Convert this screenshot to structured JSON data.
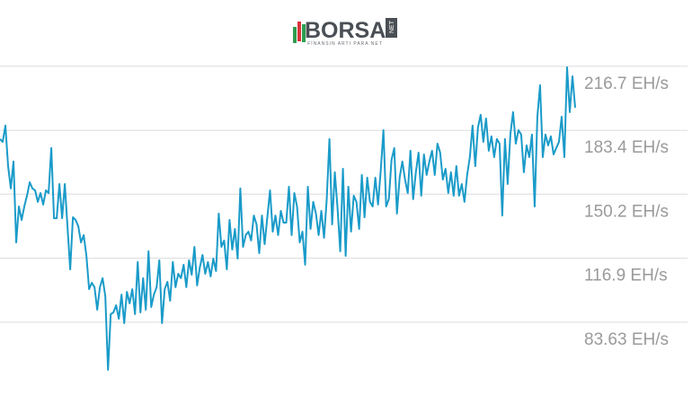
{
  "logo": {
    "brand": "BORSA",
    "suffix": "NET",
    "tagline": "FİNANSIN ARTI PARA NET"
  },
  "chart_data": {
    "type": "line",
    "color": "#1a9bc9",
    "grid": true,
    "ylim": [
      50.4,
      223.2
    ],
    "yticks": [
      {
        "value": 216.7,
        "label": "216.7 EH/s"
      },
      {
        "value": 183.4,
        "label": "183.4 EH/s"
      },
      {
        "value": 150.2,
        "label": "150.2 EH/s"
      },
      {
        "value": 116.9,
        "label": "116.9 EH/s"
      },
      {
        "value": 83.63,
        "label": "83.63 EH/s"
      }
    ],
    "values": [
      178.9,
      177.4,
      185.9,
      164.8,
      153.2,
      167.2,
      125.1,
      143.8,
      136.8,
      143.8,
      149.4,
      156.4,
      153.2,
      152.2,
      146.2,
      150.8,
      144.8,
      152.2,
      150.8,
      174.2,
      137.7,
      137.7,
      155.5,
      137.7,
      155.5,
      133.1,
      111.1,
      138.2,
      136.8,
      133.5,
      125.1,
      128.9,
      118.1,
      100.8,
      104.1,
      101.8,
      90.1,
      101.8,
      106.5,
      97.1,
      58.8,
      87.8,
      88.7,
      92.4,
      85.4,
      98.0,
      83.1,
      99.4,
      93.4,
      100.8,
      87.8,
      114.9,
      88.7,
      106.5,
      90.1,
      120.5,
      91.5,
      98.0,
      101.8,
      115.8,
      83.1,
      100.8,
      104.6,
      94.8,
      114.9,
      101.8,
      108.8,
      106.5,
      113.5,
      101.8,
      115.8,
      108.3,
      122.8,
      102.7,
      112.1,
      118.6,
      108.8,
      114.9,
      107.4,
      116.7,
      110.2,
      140.1,
      122.8,
      126.1,
      111.1,
      136.8,
      121.4,
      132.1,
      116.7,
      153.2,
      122.8,
      128.9,
      130.7,
      126.1,
      139.1,
      134.5,
      119.5,
      139.1,
      124.2,
      138.2,
      152.2,
      130.7,
      139.1,
      128.9,
      141.5,
      135.4,
      135.4,
      154.1,
      128.9,
      150.8,
      143.8,
      125.1,
      130.7,
      113.5,
      154.1,
      132.1,
      146.2,
      140.1,
      128.9,
      141.5,
      127.5,
      147.6,
      178.9,
      134.5,
      161.6,
      142.9,
      120.5,
      163.4,
      118.1,
      154.1,
      130.7,
      149.4,
      146.2,
      132.1,
      160.2,
      138.2,
      158.8,
      146.2,
      143.8,
      158.8,
      144.8,
      162.5,
      183.5,
      143.8,
      147.6,
      168.1,
      174.2,
      140.1,
      158.8,
      167.2,
      157.8,
      150.8,
      172.8,
      147.6,
      161.6,
      171.8,
      149.4,
      170.9,
      160.2,
      167.2,
      172.8,
      160.2,
      176.5,
      171.8,
      157.8,
      163.4,
      150.8,
      161.6,
      149.4,
      164.8,
      149.4,
      155.5,
      146.2,
      160.2,
      169.5,
      185.9,
      164.8,
      184.9,
      191.5,
      177.4,
      189.6,
      172.8,
      180.3,
      169.5,
      178.9,
      176.5,
      139.1,
      178.9,
      155.5,
      181.2,
      192.9,
      176.5,
      183.5,
      181.2,
      161.6,
      175.6,
      169.5,
      181.2,
      143.8,
      190.5,
      206.9,
      169.5,
      181.2,
      175.6,
      180.3,
      170.9,
      174.2,
      177.4,
      190.5,
      169.5,
      216.2,
      192.9,
      211.5,
      195.2
    ]
  }
}
